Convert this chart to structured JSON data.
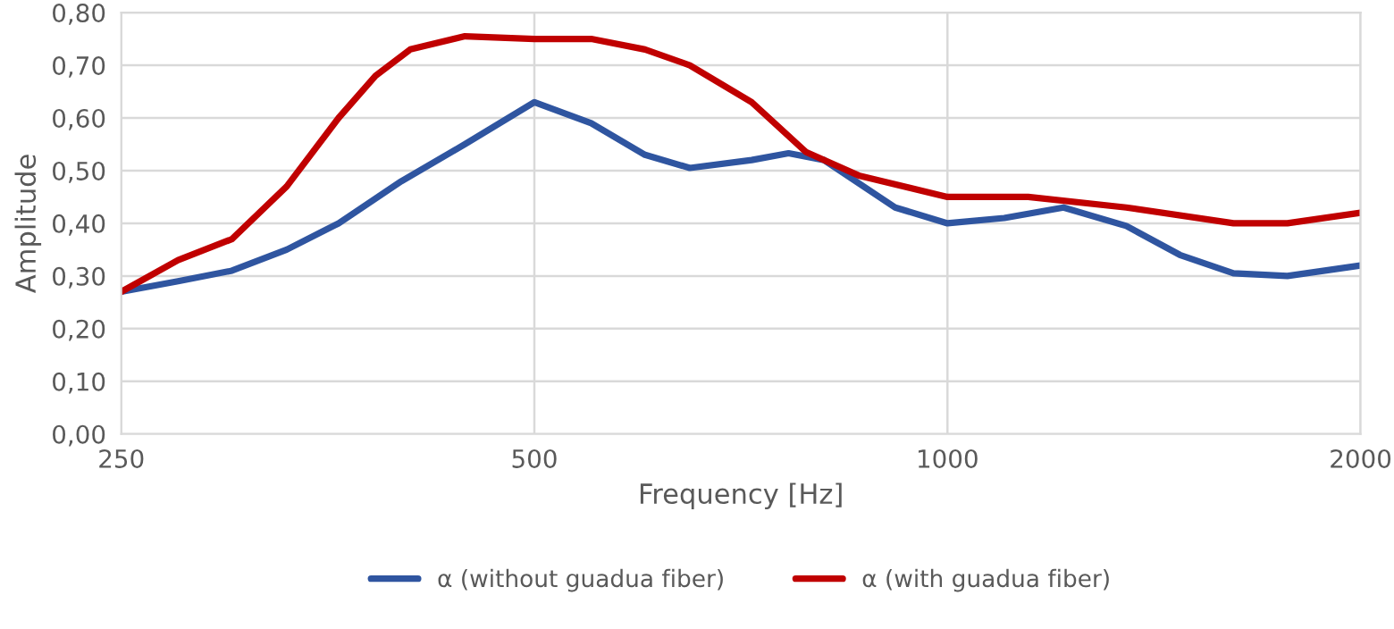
{
  "chart_data": {
    "type": "line",
    "xlabel": "Frequency [Hz]",
    "ylabel": "Amplitude",
    "log": "x",
    "series": [
      {
        "name": "α (without guadua fiber)",
        "color": "#2f55a0",
        "x": [
          250,
          275,
          301,
          330,
          360,
          400,
          445,
          500,
          550,
          602,
          649,
          720,
          766,
          813,
          916,
          1000,
          1100,
          1215,
          1350,
          1477,
          1616,
          1769,
          2000
        ],
        "values": [
          0.27,
          0.29,
          0.31,
          0.35,
          0.4,
          0.48,
          0.55,
          0.63,
          0.59,
          0.53,
          0.505,
          0.52,
          0.533,
          0.52,
          0.43,
          0.4,
          0.41,
          0.43,
          0.395,
          0.34,
          0.305,
          0.3,
          0.32
        ]
      },
      {
        "name": "α (with guadua fiber)",
        "color": "#c00000",
        "x": [
          250,
          275,
          301,
          330,
          360,
          383,
          406,
          445,
          500,
          550,
          602,
          649,
          720,
          789,
          863,
          1000,
          1145,
          1350,
          1616,
          1769,
          2000
        ],
        "values": [
          0.27,
          0.33,
          0.37,
          0.47,
          0.6,
          0.68,
          0.73,
          0.755,
          0.75,
          0.75,
          0.73,
          0.7,
          0.63,
          0.535,
          0.49,
          0.45,
          0.45,
          0.43,
          0.4,
          0.4,
          0.42
        ]
      }
    ],
    "xlim": [
      250,
      2000
    ],
    "xticks": [
      250,
      500,
      1000,
      2000
    ],
    "ylim": [
      0,
      0.8
    ],
    "yticks": [
      {
        "value": 0,
        "label": "0,00"
      },
      {
        "value": 0.1,
        "label": "0,10"
      },
      {
        "value": 0.2,
        "label": "0,20"
      },
      {
        "value": 0.3,
        "label": "0,30"
      },
      {
        "value": 0.4,
        "label": "0,40"
      },
      {
        "value": 0.5,
        "label": "0,50"
      },
      {
        "value": 0.6,
        "label": "0,60"
      },
      {
        "value": 0.7,
        "label": "0,70"
      },
      {
        "value": 0.8,
        "label": "0,80"
      }
    ],
    "grid": true,
    "legend": "bottom",
    "marker": "none",
    "line_style": "solid"
  }
}
